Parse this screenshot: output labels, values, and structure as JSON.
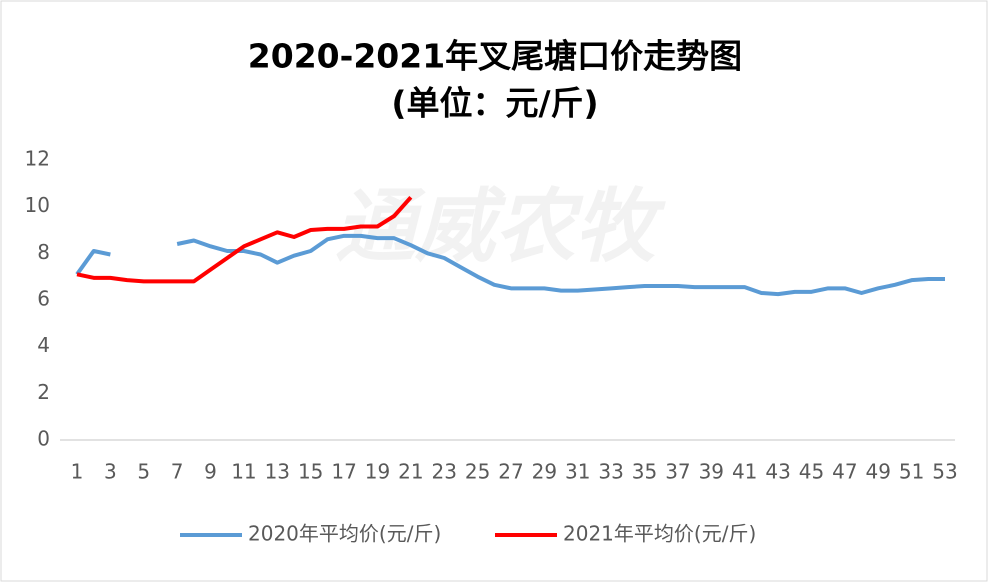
{
  "chart_data": {
    "type": "line",
    "title": "2020-2021年叉尾塘口价走势图",
    "subtitle": "(单位：元/斤)",
    "watermark": "通威农牧",
    "categories": [
      1,
      null,
      3,
      null,
      5,
      null,
      7,
      null,
      9,
      null,
      11,
      null,
      13,
      null,
      15,
      null,
      17,
      null,
      19,
      null,
      21,
      null,
      23,
      null,
      25,
      null,
      27,
      null,
      29,
      null,
      31,
      null,
      33,
      null,
      35,
      null,
      37,
      null,
      39,
      null,
      41,
      null,
      43,
      null,
      45,
      null,
      47,
      null,
      49,
      null,
      51,
      null,
      53
    ],
    "series": [
      {
        "name": "2020年平均价(元/斤)",
        "color": "#5b9bd5",
        "values": [
          7.1,
          8.1,
          7.95,
          null,
          null,
          null,
          8.4,
          8.55,
          8.3,
          8.1,
          8.1,
          7.95,
          7.6,
          7.9,
          8.1,
          8.6,
          8.75,
          8.75,
          8.65,
          8.65,
          8.35,
          8.0,
          7.8,
          7.4,
          7.0,
          6.65,
          6.5,
          6.5,
          6.5,
          6.4,
          6.4,
          6.45,
          6.5,
          6.55,
          6.6,
          6.6,
          6.6,
          6.55,
          6.55,
          6.55,
          6.55,
          6.3,
          6.25,
          6.35,
          6.35,
          6.5,
          6.5,
          6.3,
          6.5,
          6.65,
          6.85,
          6.9,
          6.9
        ]
      },
      {
        "name": "2021年平均价(元/斤)",
        "color": "#ff0000",
        "values": [
          7.1,
          6.95,
          6.95,
          6.85,
          6.8,
          6.8,
          6.8,
          6.8,
          7.3,
          7.8,
          8.3,
          8.6,
          8.9,
          8.7,
          9.0,
          9.05,
          9.05,
          9.15,
          9.15,
          9.6,
          10.4,
          null,
          null,
          null,
          null,
          null,
          null,
          null,
          null,
          null,
          null,
          null,
          null,
          null,
          null,
          null,
          null,
          null,
          null,
          null,
          null,
          null,
          null,
          null,
          null,
          null,
          null,
          null,
          null,
          null,
          null,
          null,
          null
        ]
      }
    ],
    "ylim": [
      0,
      12
    ],
    "yticks": [
      0,
      2,
      4,
      6,
      8,
      10,
      12
    ],
    "grid": false,
    "legend": "bottom"
  }
}
